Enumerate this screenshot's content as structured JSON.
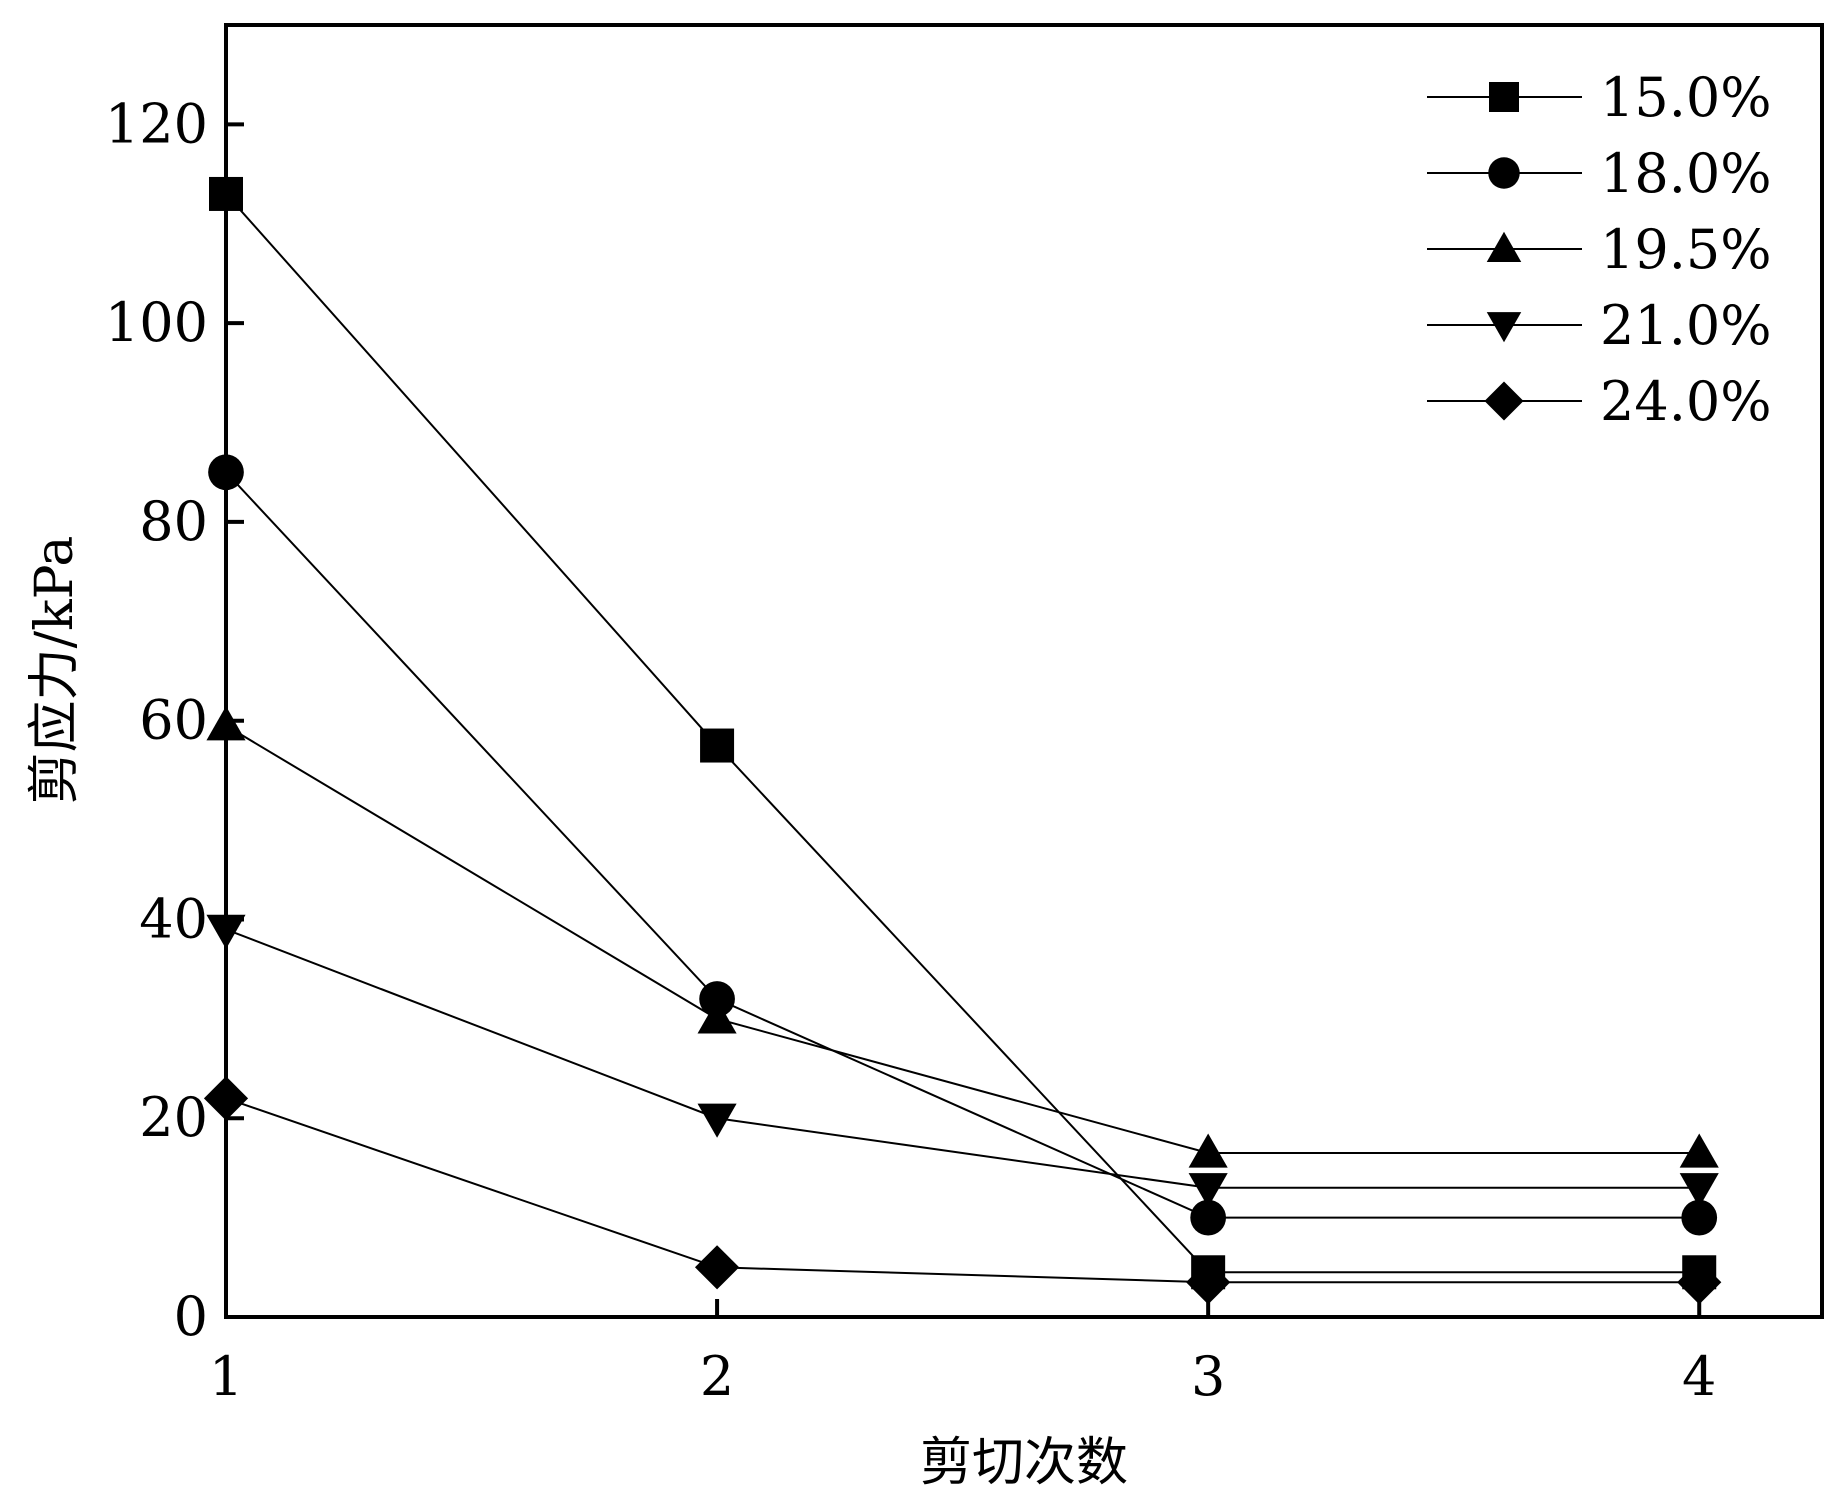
{
  "chart_data": {
    "type": "line",
    "title": "",
    "xlabel": "剪切次数",
    "ylabel": "剪应力/kPa",
    "x": [
      1,
      2,
      3,
      4
    ],
    "xlim": [
      1,
      4.25
    ],
    "ylim": [
      0,
      130
    ],
    "xticks": [
      1,
      2,
      3,
      4
    ],
    "xtick_labels": [
      "1",
      "2",
      "3",
      "4"
    ],
    "yticks": [
      0,
      20,
      40,
      60,
      80,
      100,
      120
    ],
    "ytick_labels": [
      "0",
      "20",
      "40",
      "60",
      "80",
      "100",
      "120"
    ],
    "grid": false,
    "legend_position": "top-right",
    "line_color": "#000000",
    "series": [
      {
        "name": "15.0%",
        "marker": "square",
        "values": [
          113,
          57.5,
          4.5,
          4.5
        ]
      },
      {
        "name": "18.0%",
        "marker": "circle",
        "values": [
          85,
          32,
          10,
          10
        ]
      },
      {
        "name": "19.5%",
        "marker": "triangle-up",
        "values": [
          59.5,
          30,
          16.5,
          16.5
        ]
      },
      {
        "name": "21.0%",
        "marker": "triangle-down",
        "values": [
          39,
          20,
          13,
          13
        ]
      },
      {
        "name": "24.0%",
        "marker": "diamond",
        "values": [
          22,
          5,
          3.5,
          3.5
        ]
      }
    ]
  }
}
